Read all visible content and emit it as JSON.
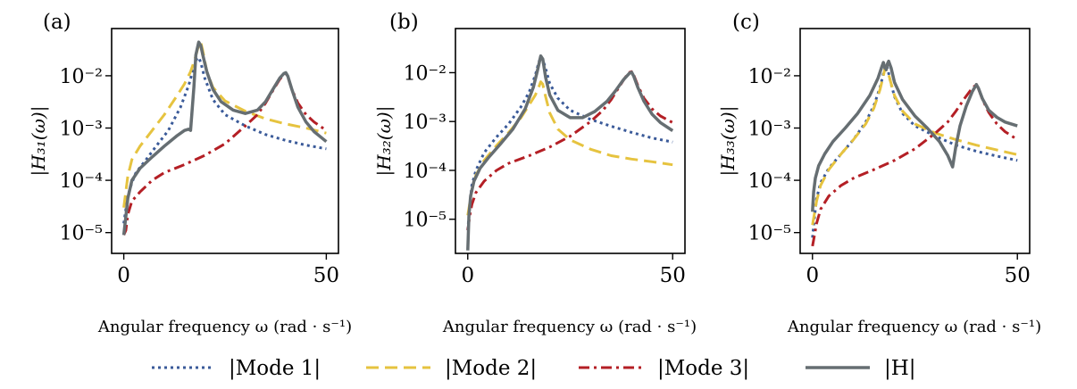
{
  "chart_data": [
    {
      "type": "line",
      "panel_label": "(a)",
      "title": "",
      "xlabel": "Angular frequency ω (rad · s⁻¹)",
      "ylabel": "|H₃₁(ω)|",
      "yscale": "log",
      "xlim": [
        -3,
        53
      ],
      "ylim": [
        4e-06,
        0.08
      ],
      "xticks": [
        0,
        50
      ],
      "xtick_labels": [
        "0",
        "50"
      ],
      "yticks": [
        1e-05,
        0.0001,
        0.001,
        0.01
      ],
      "ytick_labels": [
        "10⁻⁵",
        "10⁻⁴",
        "10⁻³",
        "10⁻²"
      ],
      "series": [
        {
          "name": "|Mode 1|",
          "style": "dotted",
          "color": "#3a5a99",
          "x": [
            0,
            1,
            2,
            3,
            5,
            8,
            11,
            14,
            16,
            17,
            18,
            18.5,
            19,
            20,
            22,
            25,
            30,
            35,
            40,
            45,
            50
          ],
          "y": [
            1.5e-05,
            5e-05,
            9e-05,
            0.00014,
            0.00022,
            0.00045,
            0.0009,
            0.0025,
            0.0065,
            0.012,
            0.021,
            0.0225,
            0.018,
            0.009,
            0.0035,
            0.0018,
            0.0011,
            0.00075,
            0.00058,
            0.00047,
            0.0004
          ]
        },
        {
          "name": "|Mode 2|",
          "style": "dashed",
          "color": "#e6c33f",
          "x": [
            0,
            1,
            2,
            4,
            7,
            10,
            13,
            15,
            16.5,
            17.5,
            18.3,
            19,
            19.5,
            20.5,
            22,
            25,
            30,
            35,
            40,
            45,
            50
          ],
          "y": [
            3e-05,
            0.00012,
            0.00025,
            0.00045,
            0.0009,
            0.0018,
            0.004,
            0.007,
            0.012,
            0.02,
            0.034,
            0.044,
            0.03,
            0.012,
            0.006,
            0.0033,
            0.0021,
            0.0015,
            0.0012,
            0.001,
            0.0008
          ]
        },
        {
          "name": "|Mode 3|",
          "style": "dashdot",
          "color": "#b41f25",
          "x": [
            0,
            0.5,
            1,
            2,
            4,
            7,
            10,
            15,
            20,
            25,
            30,
            33,
            35,
            37,
            38.5,
            39.5,
            40,
            40.5,
            41.5,
            43,
            45,
            47,
            50
          ],
          "y": [
            9e-06,
            1.1e-05,
            2.2e-05,
            4e-05,
            6e-05,
            0.0001,
            0.00014,
            0.0002,
            0.0003,
            0.0005,
            0.0011,
            0.0018,
            0.003,
            0.0055,
            0.0085,
            0.0105,
            0.011,
            0.0095,
            0.0055,
            0.003,
            0.0018,
            0.0013,
            0.0009
          ]
        },
        {
          "name": "|H|",
          "style": "solid",
          "color": "#666e72",
          "x": [
            0,
            0.5,
            1,
            2,
            4,
            7,
            10,
            13,
            15,
            16,
            16.5,
            17.3,
            17.8,
            18.5,
            19,
            19.5,
            20.5,
            22,
            24,
            27,
            30,
            33,
            35,
            37,
            38.5,
            39.5,
            40,
            40.5,
            41.5,
            43,
            45,
            47,
            50
          ],
          "y": [
            9e-06,
            2e-05,
            4.5e-05,
            0.0001,
            0.00017,
            0.00028,
            0.00045,
            0.0007,
            0.0009,
            0.00095,
            0.0009,
            0.006,
            0.025,
            0.044,
            0.038,
            0.025,
            0.012,
            0.0055,
            0.0032,
            0.0022,
            0.0019,
            0.0022,
            0.0032,
            0.0058,
            0.009,
            0.011,
            0.0115,
            0.0098,
            0.0055,
            0.0025,
            0.0013,
            0.00085,
            0.00055
          ]
        }
      ]
    },
    {
      "type": "line",
      "panel_label": "(b)",
      "title": "",
      "xlabel": "Angular frequency ω (rad · s⁻¹)",
      "ylabel": "|H₃₂(ω)|",
      "yscale": "log",
      "xlim": [
        -3,
        53
      ],
      "ylim": [
        2e-06,
        0.08
      ],
      "xticks": [
        0,
        50
      ],
      "xtick_labels": [
        "0",
        "50"
      ],
      "yticks": [
        1e-05,
        0.0001,
        0.001,
        0.01
      ],
      "ytick_labels": [
        "10⁻⁵",
        "10⁻⁴",
        "10⁻³",
        "10⁻²"
      ],
      "series": [
        {
          "name": "|Mode 1|",
          "style": "dotted",
          "color": "#3a5a99",
          "x": [
            0,
            0.5,
            1,
            2,
            4,
            7,
            10,
            13,
            15,
            16.5,
            17.3,
            17.8,
            18.3,
            19,
            20,
            22,
            25,
            30,
            35,
            40,
            45,
            50
          ],
          "y": [
            6e-06,
            2e-05,
            5e-05,
            0.0001,
            0.00023,
            0.00048,
            0.0009,
            0.002,
            0.004,
            0.009,
            0.016,
            0.021,
            0.019,
            0.012,
            0.006,
            0.003,
            0.0017,
            0.0011,
            0.0008,
            0.0006,
            0.00046,
            0.00038
          ]
        },
        {
          "name": "|Mode 2|",
          "style": "dashed",
          "color": "#e6c33f",
          "x": [
            0,
            1,
            2,
            4,
            7,
            10,
            13,
            15,
            16.5,
            17.3,
            17.8,
            18.3,
            19,
            20,
            22,
            25,
            30,
            35,
            40,
            45,
            50
          ],
          "y": [
            1.2e-05,
            4e-05,
            8e-05,
            0.00016,
            0.00032,
            0.0006,
            0.0012,
            0.0022,
            0.0035,
            0.005,
            0.0065,
            0.0058,
            0.0032,
            0.0015,
            0.0007,
            0.00042,
            0.00027,
            0.0002,
            0.00017,
            0.00015,
            0.00013
          ]
        },
        {
          "name": "|Mode 3|",
          "style": "dashdot",
          "color": "#b41f25",
          "x": [
            0,
            0.5,
            1,
            2,
            4,
            7,
            10,
            15,
            20,
            25,
            30,
            33,
            35,
            37,
            38.5,
            39.5,
            40,
            40.5,
            41.5,
            43,
            45,
            47,
            50
          ],
          "y": [
            6e-06,
            1.2e-05,
            2e-05,
            3.5e-05,
            6e-05,
            0.0001,
            0.00014,
            0.0002,
            0.0003,
            0.0005,
            0.001,
            0.0017,
            0.0028,
            0.0052,
            0.0082,
            0.0102,
            0.0105,
            0.009,
            0.0055,
            0.003,
            0.0018,
            0.0013,
            0.00095
          ]
        },
        {
          "name": "|H|",
          "style": "solid",
          "color": "#666e72",
          "x": [
            0,
            0.3,
            0.7,
            1.5,
            3,
            5,
            8,
            11,
            14,
            16,
            17,
            17.8,
            18.3,
            19,
            20,
            22,
            25,
            28,
            31,
            34,
            36,
            38,
            39.5,
            40,
            40.5,
            41.5,
            43,
            45,
            47,
            50
          ],
          "y": [
            2.3e-06,
            1.2e-05,
            3e-05,
            6e-05,
            0.00011,
            0.00018,
            0.00035,
            0.0007,
            0.0018,
            0.005,
            0.011,
            0.022,
            0.019,
            0.008,
            0.0035,
            0.0017,
            0.0012,
            0.0012,
            0.0016,
            0.0026,
            0.0042,
            0.0072,
            0.0098,
            0.0102,
            0.0085,
            0.005,
            0.0026,
            0.0014,
            0.00095,
            0.00065
          ]
        }
      ]
    },
    {
      "type": "line",
      "panel_label": "(c)",
      "title": "",
      "xlabel": "Angular frequency ω (rad · s⁻¹)",
      "ylabel": "|H₃₃(ω)|",
      "yscale": "log",
      "xlim": [
        -3,
        53
      ],
      "ylim": [
        4e-06,
        0.08
      ],
      "xticks": [
        0,
        50
      ],
      "xtick_labels": [
        "0",
        "50"
      ],
      "yticks": [
        1e-05,
        0.0001,
        0.001,
        0.01
      ],
      "ytick_labels": [
        "10⁻⁵",
        "10⁻⁴",
        "10⁻³",
        "10⁻²"
      ],
      "series": [
        {
          "name": "|Mode 1|",
          "style": "dotted",
          "color": "#3a5a99",
          "x": [
            0,
            0.5,
            1,
            2,
            4,
            7,
            10,
            13,
            15,
            16.5,
            17.3,
            17.8,
            18.3,
            19,
            20,
            22,
            25,
            30,
            35,
            40,
            45,
            50
          ],
          "y": [
            8e-06,
            2e-05,
            4.5e-05,
            9e-05,
            0.00017,
            0.00032,
            0.0006,
            0.0013,
            0.0027,
            0.006,
            0.011,
            0.016,
            0.014,
            0.008,
            0.004,
            0.0019,
            0.0011,
            0.0007,
            0.00047,
            0.00036,
            0.00029,
            0.00024
          ]
        },
        {
          "name": "|Mode 2|",
          "style": "dashed",
          "color": "#e6c33f",
          "x": [
            0,
            1,
            2,
            4,
            7,
            10,
            13,
            15,
            16.5,
            17.3,
            17.8,
            18.3,
            19,
            20,
            22,
            25,
            30,
            35,
            40,
            45,
            50
          ],
          "y": [
            1.4e-05,
            4e-05,
            8e-05,
            0.00016,
            0.00032,
            0.0006,
            0.0012,
            0.0024,
            0.0055,
            0.01,
            0.015,
            0.013,
            0.008,
            0.0042,
            0.0021,
            0.0012,
            0.0008,
            0.0006,
            0.00047,
            0.00038,
            0.00031
          ]
        },
        {
          "name": "|Mode 3|",
          "style": "dashdot",
          "color": "#b41f25",
          "x": [
            0,
            0.5,
            1,
            2,
            4,
            7,
            10,
            15,
            20,
            25,
            30,
            33,
            35,
            37,
            38.5,
            39.5,
            40,
            40.5,
            41.5,
            43,
            45,
            47,
            50
          ],
          "y": [
            5.5e-06,
            9e-06,
            1.5e-05,
            2.8e-05,
            5e-05,
            8e-05,
            0.00011,
            0.00016,
            0.00024,
            0.0004,
            0.0008,
            0.0013,
            0.0021,
            0.0036,
            0.0052,
            0.0063,
            0.0066,
            0.0057,
            0.0035,
            0.002,
            0.0012,
            0.00085,
            0.0006
          ]
        },
        {
          "name": "|H|",
          "style": "solid",
          "color": "#666e72",
          "x": [
            0,
            0.3,
            0.7,
            1.5,
            3,
            5,
            8,
            11,
            14,
            16,
            16.8,
            17.3,
            17.6,
            18,
            18.3,
            18.6,
            19.2,
            20,
            22,
            25,
            28,
            31,
            33,
            34.2,
            35,
            36,
            37.5,
            39,
            40,
            40.5,
            41.5,
            43,
            45,
            47,
            50
          ],
          "y": [
            2.5e-05,
            6e-05,
            0.00011,
            0.00019,
            0.00032,
            0.00055,
            0.001,
            0.0019,
            0.0042,
            0.009,
            0.014,
            0.018,
            0.015,
            0.013,
            0.017,
            0.019,
            0.014,
            0.0075,
            0.0035,
            0.0017,
            0.001,
            0.00055,
            0.0003,
            0.00018,
            0.00045,
            0.0011,
            0.0026,
            0.005,
            0.0068,
            0.0058,
            0.0036,
            0.0022,
            0.0016,
            0.0013,
            0.0011
          ]
        }
      ]
    }
  ]
}
